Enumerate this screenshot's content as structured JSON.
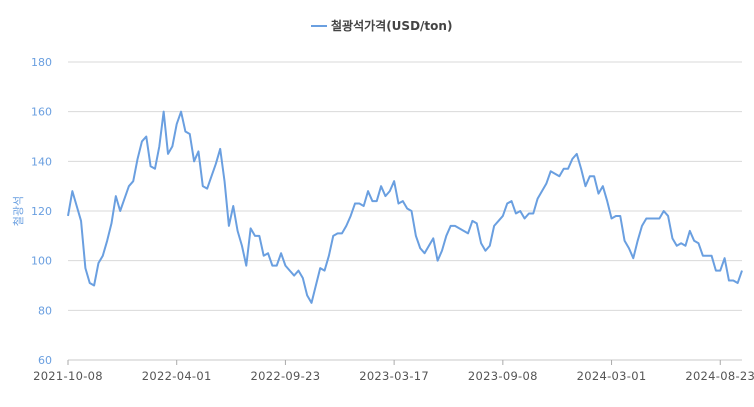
{
  "chart_data": {
    "type": "line",
    "title": "",
    "xlabel": "",
    "ylabel": "철광석",
    "ylim": [
      60,
      180
    ],
    "yticks": [
      60,
      80,
      100,
      120,
      140,
      160,
      180
    ],
    "grid": true,
    "legend_position": "top-center",
    "colors": {
      "series": "#6a9fe0",
      "axis_text": "#6a9fe0",
      "grid": "#d9d9d9",
      "xtick_text": "#555555"
    },
    "x_tick_labels": [
      "2021-10-08",
      "2022-04-01",
      "2022-09-23",
      "2023-03-17",
      "2023-09-08",
      "2024-03-01",
      "2024-08-23"
    ],
    "series": [
      {
        "name": "철광석가격(USD/ton)",
        "values": [
          118,
          128,
          122,
          116,
          97,
          91,
          90,
          99,
          102,
          108,
          115,
          126,
          120,
          125,
          130,
          132,
          141,
          148,
          150,
          138,
          137,
          146,
          160,
          143,
          146,
          155,
          160,
          152,
          151,
          140,
          144,
          130,
          129,
          134,
          139,
          145,
          132,
          114,
          122,
          112,
          106,
          98,
          113,
          110,
          110,
          102,
          103,
          98,
          98,
          103,
          98,
          96,
          94,
          96,
          93,
          86,
          83,
          90,
          97,
          96,
          102,
          110,
          111,
          111,
          114,
          118,
          123,
          123,
          122,
          128,
          124,
          124,
          130,
          126,
          128,
          132,
          123,
          124,
          121,
          120,
          110,
          105,
          103,
          106,
          109,
          100,
          104,
          110,
          114,
          114,
          113,
          112,
          111,
          116,
          115,
          107,
          104,
          106,
          114,
          116,
          118,
          123,
          124,
          119,
          120,
          117,
          119,
          119,
          125,
          128,
          131,
          136,
          135,
          134,
          137,
          137,
          141,
          143,
          137,
          130,
          134,
          134,
          127,
          130,
          124,
          117,
          118,
          118,
          108,
          105,
          101,
          108,
          114,
          117,
          117,
          117,
          117,
          120,
          118,
          109,
          106,
          107,
          106,
          112,
          108,
          107,
          102,
          102,
          102,
          96,
          96,
          101,
          92,
          92,
          91,
          96
        ]
      }
    ]
  }
}
